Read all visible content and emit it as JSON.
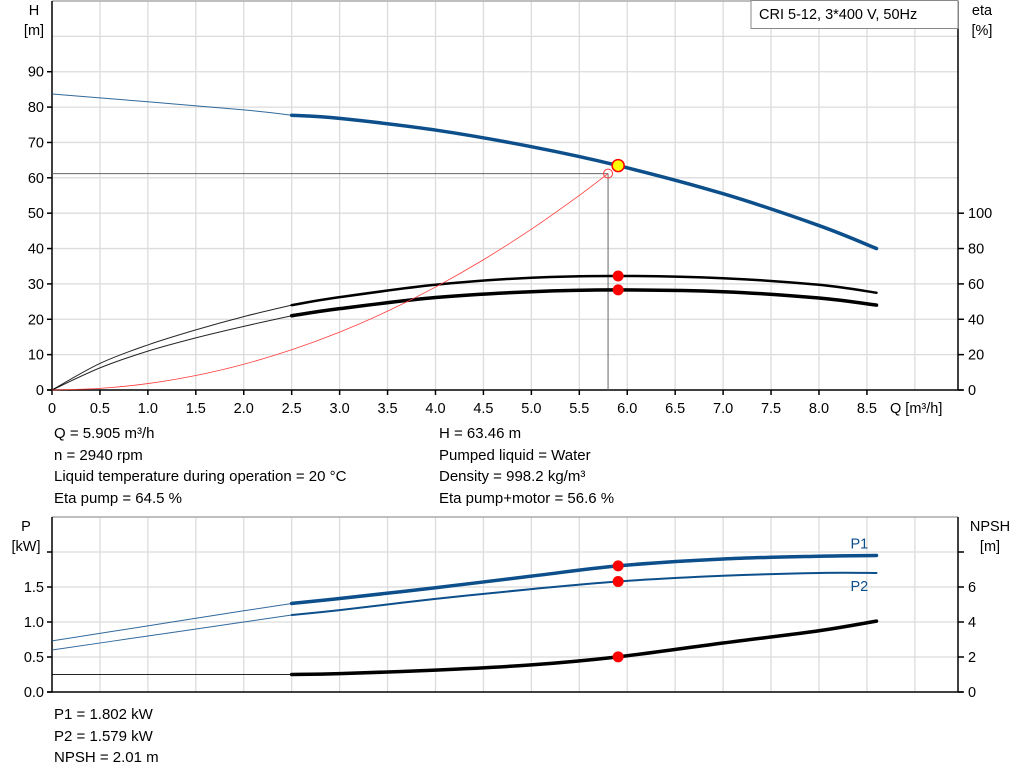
{
  "title_box": "CRI 5-12, 3*400 V, 50Hz",
  "colors": {
    "head": "#0d4f8b",
    "eta": "#000000",
    "system": "#ff3b3b",
    "power": "#0d4f8b",
    "npsh": "#000000",
    "duty_point": "#ff0000",
    "duty_fill": "#ffff00"
  },
  "info_top": {
    "left": [
      "Q = 5.905 m³/h",
      "n = 2940 rpm",
      "Liquid temperature during operation = 20 °C",
      "Eta pump = 64.5 %"
    ],
    "right": [
      "H = 63.46 m",
      "Pumped liquid = Water",
      "Density = 998.2 kg/m³",
      "Eta pump+motor = 56.6 %"
    ]
  },
  "info_bottom": [
    "P1 = 1.802 kW",
    "P2 = 1.579 kW",
    "NPSH = 2.01 m"
  ],
  "chart_data": [
    {
      "type": "line",
      "ylabel_left": [
        "H",
        "[m]"
      ],
      "ylabel_right": [
        "eta",
        "[%]"
      ],
      "xlabel": "Q [m³/h]",
      "xlim": [
        0,
        9.45
      ],
      "ylim_left": [
        0,
        110
      ],
      "ylim_right": [
        0,
        220
      ],
      "grid": true,
      "x_ticks": [
        "0",
        "0.5",
        "1.0",
        "1.5",
        "2.0",
        "2.5",
        "3.0",
        "3.5",
        "4.0",
        "4.5",
        "5.0",
        "5.5",
        "6.0",
        "6.5",
        "7.0",
        "7.5",
        "8.0",
        "8.5"
      ],
      "y_ticks_left": [
        "0",
        "10",
        "20",
        "30",
        "40",
        "50",
        "60",
        "70",
        "80",
        "90"
      ],
      "y_ticks_right": [
        "0",
        "20",
        "40",
        "60",
        "80",
        "100"
      ],
      "series": [
        {
          "key": "H",
          "axis": "left",
          "color": "#0d4f8b",
          "thin_until": 2.5,
          "x": [
            0,
            1,
            2,
            2.5,
            3,
            4,
            5,
            5.905,
            7,
            8,
            8.6
          ],
          "y": [
            83.7,
            81.5,
            79.2,
            77.7,
            76.8,
            73.5,
            68.8,
            63.46,
            55.5,
            46.5,
            40
          ]
        },
        {
          "key": "eta_pump",
          "axis": "right",
          "color": "#000000",
          "thin_until": 2.5,
          "width": 2.5,
          "x": [
            0,
            0.5,
            1,
            1.5,
            2,
            2.5,
            3,
            4,
            5,
            5.905,
            7,
            8,
            8.6
          ],
          "y": [
            0,
            15,
            25.5,
            34,
            41.5,
            48,
            52.5,
            59.5,
            63.5,
            64.5,
            63.2,
            59.5,
            55
          ]
        },
        {
          "key": "eta_pump_motor",
          "axis": "right",
          "color": "#000000",
          "thin_until": 2.5,
          "width": 3.5,
          "x": [
            0,
            0.5,
            1,
            1.5,
            2,
            2.5,
            3,
            4,
            5,
            5.905,
            7,
            8,
            8.6
          ],
          "y": [
            0,
            12.5,
            22,
            29.5,
            36,
            42,
            46,
            52.3,
            55.6,
            56.6,
            55.6,
            52,
            48
          ]
        },
        {
          "key": "system",
          "axis": "left",
          "color": "#ff3b3b",
          "width": 0.8,
          "x": [
            0,
            0.5,
            1,
            1.5,
            2,
            2.5,
            3,
            3.5,
            4,
            4.5,
            5,
            5.5,
            5.8
          ],
          "y": [
            0,
            0.45,
            1.82,
            4.09,
            7.28,
            11.37,
            16.37,
            22.29,
            29.11,
            36.84,
            45.48,
            55.03,
            61.2
          ]
        }
      ],
      "duty_point": {
        "Q": 5.905,
        "H": 63.46,
        "eta_pump": 64.5,
        "eta_pump_motor": 56.6
      },
      "system_point": {
        "Q": 5.8,
        "H": 61.2
      }
    },
    {
      "type": "line",
      "ylabel_left": [
        "P",
        "[kW]"
      ],
      "ylabel_right": [
        "NPSH",
        "[m]"
      ],
      "xlim": [
        0,
        9.45
      ],
      "ylim_left": [
        0,
        2.5
      ],
      "ylim_right": [
        0,
        10
      ],
      "grid": true,
      "y_ticks_left": [
        "0.0",
        "0.5",
        "1.0",
        "1.5",
        ""
      ],
      "y_ticks_right": [
        "0",
        "2",
        "4",
        "6",
        ""
      ],
      "series": [
        {
          "key": "P1",
          "name": "P1",
          "axis": "left",
          "color": "#0d4f8b",
          "thin_until": 2.5,
          "width": 3.5,
          "x": [
            0,
            1,
            2,
            2.5,
            3,
            4,
            5,
            5.905,
            7,
            8,
            8.6
          ],
          "y": [
            0.73,
            0.945,
            1.16,
            1.265,
            1.335,
            1.49,
            1.655,
            1.802,
            1.9,
            1.94,
            1.95
          ]
        },
        {
          "key": "P2",
          "name": "P2",
          "axis": "left",
          "color": "#0d4f8b",
          "thin_until": 2.5,
          "width": 2,
          "x": [
            0,
            1,
            2,
            2.5,
            3,
            4,
            5,
            5.905,
            7,
            8,
            8.6
          ],
          "y": [
            0.6,
            0.8,
            1.0,
            1.1,
            1.17,
            1.33,
            1.47,
            1.579,
            1.66,
            1.7,
            1.7
          ]
        },
        {
          "key": "NPSH",
          "axis": "right",
          "color": "#000000",
          "thin_until": 2.5,
          "width": 3.5,
          "x": [
            0,
            1,
            2,
            2.5,
            3,
            4,
            5,
            5.905,
            7,
            8,
            8.6
          ],
          "y": [
            1.0,
            1.0,
            1.0,
            1.0,
            1.05,
            1.25,
            1.55,
            2.01,
            2.8,
            3.5,
            4.05
          ]
        }
      ],
      "duty_point": {
        "Q": 5.905,
        "P1": 1.802,
        "P2": 1.579,
        "NPSH": 2.01
      }
    }
  ]
}
